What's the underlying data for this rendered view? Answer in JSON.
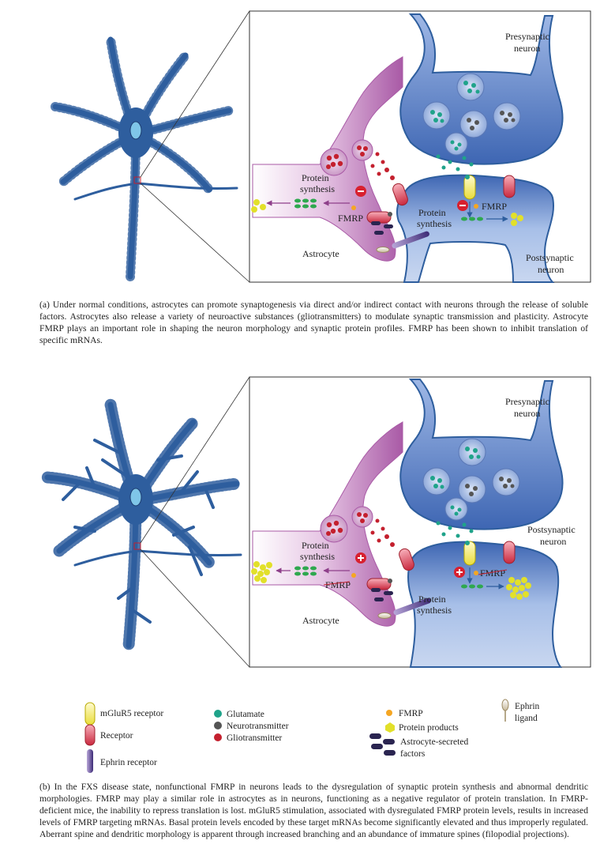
{
  "panel_a": {
    "labels": {
      "presynaptic": [
        "Presynaptic",
        "neuron"
      ],
      "postsynaptic": [
        "Postsynaptic",
        "neuron"
      ],
      "astrocyte": "Astrocyte",
      "astro_protein": [
        "Protein",
        "synthesis"
      ],
      "astro_fmrp": "FMRP",
      "neuron_protein": [
        "Protein",
        "synthesis"
      ],
      "neuron_fmrp": "FMRP"
    },
    "caption": "(a)   Under normal conditions, astrocytes can promote synaptogenesis via direct and/or indirect contact with neurons through the release of soluble factors. Astrocytes also release a variety of neuroactive substances (gliotransmitters) to modulate synaptic transmission and plasticity. Astrocyte FMRP plays an important role in shaping the neuron morphology and synaptic protein profiles. FMRP has been shown to inhibit translation of specific mRNAs."
  },
  "panel_b": {
    "labels": {
      "presynaptic": [
        "Presynaptic",
        "neuron"
      ],
      "postsynaptic": [
        "Postsynaptic",
        "neuron"
      ],
      "astrocyte": "Astrocyte",
      "astro_protein": [
        "Protein",
        "synthesis"
      ],
      "astro_fmrp": "FMRP",
      "neuron_protein": [
        "Protein",
        "synthesis"
      ],
      "neuron_fmrp": "FMRP"
    },
    "caption": "(b) In the FXS disease state, nonfunctional FMRP in neurons leads to the dysregulation of synaptic protein synthesis and abnormal dendritic morphologies. FMRP may play a similar role in astrocytes as in neurons, functioning as a negative regulator of protein translation. In FMRP-deficient mice, the inability to repress translation is lost. mGluR5 stimulation, associated with dysregulated FMRP protein levels, results in increased levels of FMRP targeting mRNAs. Basal protein levels encoded by these target mRNAs become significantly elevated and thus improperly regulated. Aberrant spine and dendritic morphology is apparent through increased branching and an abundance of immature spines (filopodial projections)."
  },
  "legend": {
    "mglur5": "mGluR5 receptor",
    "receptor": "Receptor",
    "ephrin_receptor": "Ephrin receptor",
    "glutamate": "Glutamate",
    "neurotransmitter": "Neurotransmitter",
    "gliotransmitter": "Gliotransmitter",
    "fmrp": "FMRP",
    "protein_products": "Protein products",
    "astro_factors": [
      "Astrocyte-secreted",
      "factors"
    ],
    "ephrin_ligand": [
      "Ephrin",
      "ligand"
    ]
  },
  "colors": {
    "neuron": "#2e5e9e",
    "astrocyte": "#b76cb3",
    "gliotransmitter": "#c4202e",
    "glutamate": "#1fa38a",
    "neurotransmitter": "#555555",
    "fmrp": "#f5a623",
    "protein_product": "#e2e02a",
    "mrna": "#2fa84f",
    "factor": "#2a2450"
  }
}
